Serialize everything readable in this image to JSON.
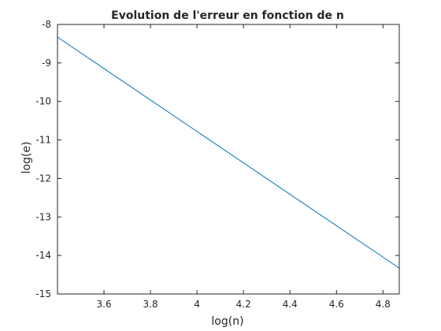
{
  "chart_data": {
    "type": "line",
    "title": "Evolution de l'erreur en fonction de n",
    "xlabel": "log(n)",
    "ylabel": "log(e)",
    "xlim": [
      3.4,
      4.87
    ],
    "ylim": [
      -15,
      -8
    ],
    "xticks": [
      3.6,
      3.8,
      4,
      4.2,
      4.4,
      4.6,
      4.8
    ],
    "xtick_labels": [
      "3.6",
      "3.8",
      "4",
      "4.2",
      "4.4",
      "4.6",
      "4.8"
    ],
    "yticks": [
      -15,
      -14,
      -13,
      -12,
      -11,
      -10,
      -9,
      -8
    ],
    "ytick_labels": [
      "-15",
      "-14",
      "-13",
      "-12",
      "-11",
      "-10",
      "-9",
      "-8"
    ],
    "grid": false,
    "legend": "none",
    "series": [
      {
        "color": "#0072BD",
        "x": [
          3.4,
          4.87
        ],
        "y": [
          -8.33,
          -14.33
        ]
      }
    ]
  }
}
